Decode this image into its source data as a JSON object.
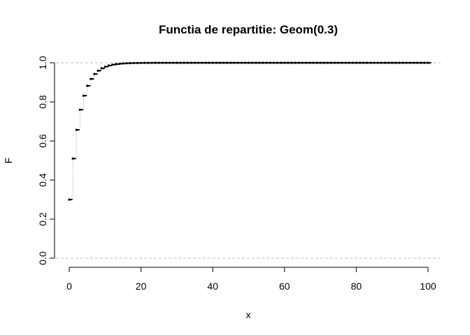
{
  "chart_data": {
    "type": "step",
    "title": "Functia de repartitie: Geom(0.3)",
    "xlabel": "x",
    "ylabel": "F",
    "xlim": [
      0,
      100
    ],
    "ylim": [
      0,
      1
    ],
    "x_ticks": [
      0,
      20,
      40,
      60,
      80,
      100
    ],
    "x_tick_labels": [
      "0",
      "20",
      "40",
      "60",
      "80",
      "100"
    ],
    "y_ticks": [
      0,
      0.2,
      0.4,
      0.6,
      0.8,
      1.0
    ],
    "y_tick_labels": [
      "0.0",
      "0.2",
      "0.4",
      "0.6",
      "0.8",
      "1.0"
    ],
    "reference_lines": [
      0,
      1
    ],
    "grid": false,
    "legend": "none",
    "series": [
      {
        "x": [
          0,
          1,
          2,
          3,
          4,
          5,
          6,
          7,
          8,
          9,
          10,
          11,
          12,
          13,
          14,
          15,
          16,
          17,
          18,
          19,
          20,
          21,
          22,
          23,
          24,
          25,
          26,
          27,
          28,
          29,
          30,
          31,
          32,
          33,
          34,
          35,
          36,
          37,
          38,
          39,
          40,
          41,
          42,
          43,
          44,
          45,
          46,
          47,
          48,
          49,
          50,
          51,
          52,
          53,
          54,
          55,
          56,
          57,
          58,
          59,
          60,
          61,
          62,
          63,
          64,
          65,
          66,
          67,
          68,
          69,
          70,
          71,
          72,
          73,
          74,
          75,
          76,
          77,
          78,
          79,
          80,
          81,
          82,
          83,
          84,
          85,
          86,
          87,
          88,
          89,
          90,
          91,
          92,
          93,
          94,
          95,
          96,
          97,
          98,
          99,
          100
        ],
        "y": [
          0.3,
          0.51,
          0.657,
          0.7599,
          0.8319,
          0.8824,
          0.9176,
          0.9424,
          0.9596,
          0.9718,
          0.9802,
          0.9862,
          0.9903,
          0.9932,
          0.9953,
          0.9967,
          0.9977,
          0.9984,
          0.9989,
          0.9992,
          0.9994,
          0.9996,
          0.9997,
          0.9998,
          0.9999,
          0.9999,
          0.9999,
          1,
          1,
          1,
          1,
          1,
          1,
          1,
          1,
          1,
          1,
          1,
          1,
          1,
          1,
          1,
          1,
          1,
          1,
          1,
          1,
          1,
          1,
          1,
          1,
          1,
          1,
          1,
          1,
          1,
          1,
          1,
          1,
          1,
          1,
          1,
          1,
          1,
          1,
          1,
          1,
          1,
          1,
          1,
          1,
          1,
          1,
          1,
          1,
          1,
          1,
          1,
          1,
          1,
          1,
          1,
          1,
          1,
          1,
          1,
          1,
          1,
          1,
          1,
          1,
          1,
          1,
          1,
          1,
          1,
          1,
          1,
          1,
          1,
          1
        ]
      }
    ],
    "colors": {
      "line": "#000000",
      "reference": "#bdbdbd",
      "riser": "#9a9a9a"
    }
  }
}
